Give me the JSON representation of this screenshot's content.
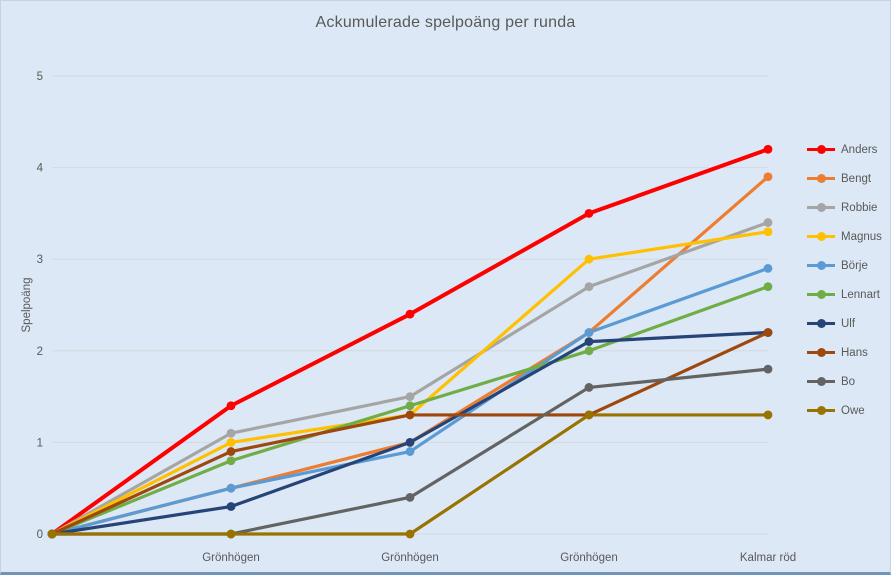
{
  "chart_data": {
    "type": "line",
    "title": "Ackumulerade spelpoäng per runda",
    "ylabel": "Spelpoäng",
    "xlabel": "",
    "categories": [
      "",
      "Grönhögen",
      "Grönhögen",
      "Grönhögen",
      "Kalmar röd"
    ],
    "ylim": [
      0,
      5
    ],
    "ytick_step": 1,
    "grid": true,
    "legend_position": "right",
    "colors": {
      "background": "#dce8f5",
      "gridline": "#d3dade",
      "text": "#595959"
    },
    "series": [
      {
        "name": "Anders",
        "color": "#ff0000",
        "values": [
          0,
          1.4,
          2.4,
          3.5,
          4.2
        ]
      },
      {
        "name": "Bengt",
        "color": "#ed7d31",
        "values": [
          0,
          0.5,
          1.0,
          2.2,
          3.9
        ]
      },
      {
        "name": "Robbie",
        "color": "#a5a5a5",
        "values": [
          0,
          1.1,
          1.5,
          2.7,
          3.4
        ]
      },
      {
        "name": "Magnus",
        "color": "#ffc000",
        "values": [
          0,
          1.0,
          1.3,
          3.0,
          3.3
        ]
      },
      {
        "name": "Börje",
        "color": "#5b9bd5",
        "values": [
          0,
          0.5,
          0.9,
          2.2,
          2.9
        ]
      },
      {
        "name": "Lennart",
        "color": "#70ad47",
        "values": [
          0,
          0.8,
          1.4,
          2.0,
          2.7
        ]
      },
      {
        "name": "Ulf",
        "color": "#264478",
        "values": [
          0,
          0.3,
          1.0,
          2.1,
          2.2
        ]
      },
      {
        "name": "Hans",
        "color": "#9e480e",
        "values": [
          0,
          0.9,
          1.3,
          1.3,
          2.2
        ]
      },
      {
        "name": "Bo",
        "color": "#636363",
        "values": [
          0,
          0.0,
          0.4,
          1.6,
          1.8
        ]
      },
      {
        "name": "Owe",
        "color": "#997300",
        "values": [
          0,
          0.0,
          0.0,
          1.3,
          1.3
        ]
      }
    ]
  }
}
